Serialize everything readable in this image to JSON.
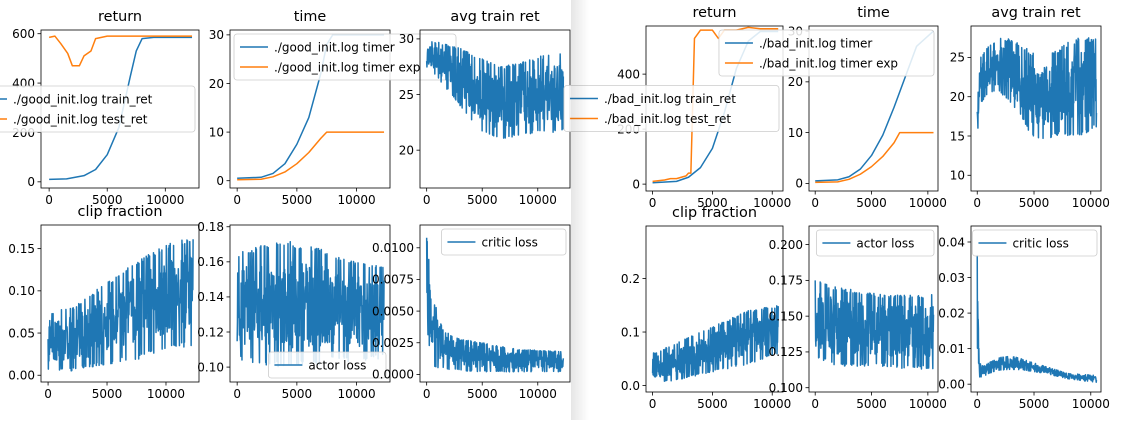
{
  "colors": {
    "blue": "#1f77b4",
    "orange": "#ff7f0e",
    "axis": "#000000"
  },
  "figures": [
    {
      "name": "good-init",
      "panels": [
        {
          "key": "return",
          "title": "return",
          "xlim": [
            -700,
            12900
          ],
          "ylim": [
            -25,
            615
          ],
          "xticks": [
            0,
            5000,
            10000
          ],
          "yticks": [
            0,
            200,
            400,
            600
          ],
          "legend": {
            "loc": "center-right",
            "entries": [
              "./good_init.log train_ret",
              "./good_init.log test_ret"
            ]
          }
        },
        {
          "key": "time",
          "title": "time",
          "xlim": [
            -600,
            12800
          ],
          "ylim": [
            -1.5,
            31
          ],
          "xticks": [
            0,
            5000,
            10000
          ],
          "yticks": [
            0,
            10,
            20,
            30
          ],
          "legend": {
            "loc": "upper-left",
            "entries": [
              "./good_init.log timer",
              "./good_init.log timer exp"
            ]
          }
        },
        {
          "key": "avg_train_ret",
          "title": "avg train ret",
          "xlim": [
            -600,
            12900
          ],
          "ylim": [
            16.6,
            30.8
          ],
          "xticks": [
            0,
            5000,
            10000
          ],
          "yticks": [
            20,
            25,
            30
          ],
          "legend": null
        },
        {
          "key": "clip_fraction",
          "title": "clip fraction",
          "xlim": [
            -600,
            12800
          ],
          "ylim": [
            -0.008,
            0.178
          ],
          "xticks": [
            0,
            5000,
            10000
          ],
          "yticks": [
            0.0,
            0.05,
            0.1,
            0.15
          ],
          "ydec": 2,
          "legend": null
        },
        {
          "key": "actor_loss",
          "title": "",
          "xlim": [
            -600,
            12800
          ],
          "ylim": [
            0.0915,
            0.181
          ],
          "xticks": [
            0,
            5000,
            10000
          ],
          "yticks": [
            0.1,
            0.12,
            0.14,
            0.16,
            0.18
          ],
          "ydec": 2,
          "legend": {
            "loc": "lower-right",
            "entries": [
              "actor loss"
            ]
          }
        },
        {
          "key": "critic_loss",
          "title": "",
          "xlim": [
            -600,
            12900
          ],
          "ylim": [
            -0.0006,
            0.0118
          ],
          "xticks": [
            0,
            5000,
            10000
          ],
          "yticks": [
            0.0,
            0.0025,
            0.005,
            0.0075,
            0.01
          ],
          "ydec": 4,
          "legend": {
            "loc": "upper-right",
            "entries": [
              "critic loss"
            ]
          }
        }
      ]
    },
    {
      "name": "bad-init",
      "panels": [
        {
          "key": "return",
          "title": "return",
          "xlim": [
            -550,
            10900
          ],
          "ylim": [
            -25,
            575
          ],
          "xticks": [
            0,
            5000,
            10000
          ],
          "yticks": [
            0,
            200,
            400
          ],
          "legend": {
            "loc": "center-right",
            "entries": [
              "./bad_init.log train_ret",
              "./bad_init.log test_ret"
            ]
          }
        },
        {
          "key": "time",
          "title": "time",
          "xlim": [
            -550,
            10900
          ],
          "ylim": [
            -1.5,
            31
          ],
          "xticks": [
            0,
            5000,
            10000
          ],
          "yticks": [
            0,
            10,
            20,
            30
          ],
          "legend": {
            "loc": "upper-right",
            "entries": [
              "./bad_init.log timer",
              "./bad_init.log timer exp"
            ]
          }
        },
        {
          "key": "avg_train_ret",
          "title": "avg train ret",
          "xlim": [
            -550,
            10900
          ],
          "ylim": [
            8.0,
            29.0
          ],
          "xticks": [
            0,
            5000,
            10000
          ],
          "yticks": [
            10,
            15,
            20,
            25
          ],
          "legend": null
        },
        {
          "key": "clip_fraction",
          "title": "clip fraction",
          "xlim": [
            -550,
            10900
          ],
          "ylim": [
            -0.012,
            0.298
          ],
          "xticks": [
            0,
            5000,
            10000
          ],
          "yticks": [
            0.0,
            0.1,
            0.2
          ],
          "ydec": 1,
          "legend": null
        },
        {
          "key": "actor_loss",
          "title": "",
          "xlim": [
            -550,
            10900
          ],
          "ylim": [
            0.097,
            0.213
          ],
          "xticks": [
            0,
            5000,
            10000
          ],
          "yticks": [
            0.1,
            0.125,
            0.15,
            0.175,
            0.2
          ],
          "ydec": 3,
          "legend": {
            "loc": "upper-right",
            "entries": [
              "actor loss"
            ]
          }
        },
        {
          "key": "critic_loss",
          "title": "",
          "xlim": [
            -550,
            10900
          ],
          "ylim": [
            -0.0022,
            0.0445
          ],
          "xticks": [
            0,
            5000,
            10000
          ],
          "yticks": [
            0.0,
            0.01,
            0.02,
            0.03,
            0.04
          ],
          "ydec": 2,
          "legend": {
            "loc": "upper-right",
            "entries": [
              "critic loss"
            ]
          }
        }
      ]
    }
  ],
  "chart_data": [
    {
      "type": "line",
      "figure": "good-init",
      "title": "return",
      "series": [
        {
          "name": "./good_init.log train_ret",
          "color": "#1f77b4",
          "x": [
            0,
            1500,
            3000,
            4000,
            5000,
            6000,
            7000,
            7500,
            8000,
            9000,
            10000,
            11000,
            12300
          ],
          "y": [
            10,
            12,
            25,
            50,
            110,
            220,
            430,
            530,
            580,
            585,
            585,
            585,
            585
          ]
        },
        {
          "name": "./good_init.log test_ret",
          "color": "#ff7f0e",
          "x": [
            0,
            500,
            1000,
            1600,
            2000,
            2600,
            3000,
            3600,
            4000,
            5000,
            6000,
            8000,
            10000,
            12300
          ],
          "y": [
            585,
            590,
            560,
            520,
            470,
            470,
            510,
            530,
            580,
            590,
            590,
            590,
            590,
            590
          ]
        }
      ]
    },
    {
      "type": "line",
      "figure": "good-init",
      "title": "time",
      "series": [
        {
          "name": "./good_init.log timer",
          "color": "#1f77b4",
          "x": [
            0,
            2000,
            3000,
            4000,
            5000,
            6000,
            7000,
            7500,
            8000,
            10000,
            12300
          ],
          "y": [
            0.5,
            0.7,
            1.5,
            3.5,
            7.5,
            13,
            22,
            28,
            30,
            30,
            30
          ]
        },
        {
          "name": "./good_init.log timer exp",
          "color": "#ff7f0e",
          "x": [
            0,
            2000,
            3000,
            4000,
            5000,
            6000,
            7000,
            7500,
            10000,
            12300
          ],
          "y": [
            0.2,
            0.3,
            0.8,
            1.8,
            3.5,
            5.8,
            8.7,
            10,
            10,
            10
          ]
        }
      ]
    },
    {
      "type": "line",
      "figure": "good-init",
      "title": "avg train ret",
      "series": [
        {
          "name": "",
          "color": "#1f77b4",
          "x": [
            0,
            1000,
            2000,
            3000,
            4000,
            5000,
            6000,
            7000,
            8000,
            9000,
            10000,
            11000,
            12300
          ],
          "y_high": [
            29.8,
            29.7,
            29.5,
            29.2,
            28.7,
            28.2,
            27.8,
            27.6,
            27.8,
            28.1,
            28.4,
            28.6,
            28.8
          ],
          "y_low": [
            27.5,
            26.5,
            25.2,
            24.0,
            22.6,
            21.6,
            21.0,
            21.0,
            21.2,
            21.4,
            21.5,
            21.6,
            21.6
          ]
        }
      ]
    },
    {
      "type": "line",
      "figure": "good-init",
      "title": "clip fraction",
      "series": [
        {
          "name": "",
          "color": "#1f77b4",
          "x": [
            0,
            2000,
            4000,
            6000,
            8000,
            10000,
            12300
          ],
          "y_high": [
            0.075,
            0.08,
            0.1,
            0.12,
            0.14,
            0.155,
            0.165
          ],
          "y_low": [
            0.005,
            0.005,
            0.01,
            0.015,
            0.02,
            0.03,
            0.035
          ]
        }
      ]
    },
    {
      "type": "line",
      "figure": "good-init",
      "title": "actor loss",
      "series": [
        {
          "name": "actor loss",
          "color": "#1f77b4",
          "x": [
            0,
            2000,
            4000,
            6000,
            8000,
            10000,
            12300
          ],
          "y_high": [
            0.165,
            0.17,
            0.172,
            0.17,
            0.165,
            0.16,
            0.158
          ],
          "y_low": [
            0.105,
            0.1,
            0.1,
            0.1,
            0.103,
            0.103,
            0.105
          ]
        }
      ]
    },
    {
      "type": "line",
      "figure": "good-init",
      "title": "critic loss",
      "series": [
        {
          "name": "critic loss",
          "color": "#1f77b4",
          "x": [
            0,
            200,
            600,
            1500,
            3000,
            5000,
            8000,
            12300
          ],
          "y_high": [
            0.011,
            0.009,
            0.006,
            0.0035,
            0.0028,
            0.0025,
            0.002,
            0.0018
          ],
          "y_low": [
            0.0025,
            0.001,
            0.0006,
            0.0004,
            0.0003,
            0.0002,
            0.0002,
            0.0002
          ]
        }
      ]
    },
    {
      "type": "line",
      "figure": "bad-init",
      "title": "return",
      "series": [
        {
          "name": "./bad_init.log train_ret",
          "color": "#1f77b4",
          "x": [
            0,
            2000,
            3000,
            4000,
            5000,
            6000,
            7000,
            8000,
            9000,
            10500
          ],
          "y": [
            5,
            10,
            25,
            60,
            130,
            260,
            420,
            520,
            555,
            555
          ]
        },
        {
          "name": "./bad_init.log test_ret",
          "color": "#ff7f0e",
          "x": [
            0,
            1000,
            1500,
            2000,
            2800,
            3000,
            3200,
            3500,
            4000,
            5000,
            5500,
            6000,
            7000,
            8000,
            9000,
            10500
          ],
          "y": [
            10,
            15,
            20,
            20,
            30,
            40,
            40,
            530,
            560,
            560,
            530,
            560,
            560,
            570,
            565,
            565
          ]
        }
      ]
    },
    {
      "type": "line",
      "figure": "bad-init",
      "title": "time",
      "series": [
        {
          "name": "./bad_init.log timer",
          "color": "#1f77b4",
          "x": [
            0,
            2000,
            3000,
            4000,
            5000,
            6000,
            7000,
            8000,
            9000,
            10500
          ],
          "y": [
            0.5,
            0.7,
            1.3,
            2.8,
            5.5,
            9.5,
            15,
            21,
            27,
            30
          ]
        },
        {
          "name": "./bad_init.log timer exp",
          "color": "#ff7f0e",
          "x": [
            0,
            2000,
            3000,
            4000,
            5000,
            6000,
            7000,
            7500,
            8000,
            10500
          ],
          "y": [
            0.2,
            0.3,
            0.8,
            1.8,
            3.3,
            5.3,
            8.0,
            10,
            10,
            10
          ]
        }
      ]
    },
    {
      "type": "line",
      "figure": "bad-init",
      "title": "avg train ret",
      "series": [
        {
          "name": "",
          "color": "#1f77b4",
          "x": [
            0,
            300,
            1000,
            2000,
            3000,
            4000,
            5000,
            6000,
            7000,
            8000,
            9000,
            10500
          ],
          "y_high": [
            19,
            25,
            26.5,
            27.5,
            27.3,
            26.5,
            25.5,
            25.5,
            26,
            27,
            27.5,
            27.5
          ],
          "y_low": [
            15,
            19,
            20.5,
            20.5,
            19,
            17,
            14.5,
            14.5,
            15,
            15,
            15,
            16
          ]
        }
      ]
    },
    {
      "type": "line",
      "figure": "bad-init",
      "title": "clip fraction",
      "series": [
        {
          "name": "",
          "color": "#1f77b4",
          "x": [
            0,
            2000,
            4000,
            6000,
            8000,
            10500
          ],
          "y_high": [
            0.06,
            0.08,
            0.1,
            0.12,
            0.14,
            0.15
          ],
          "y_low": [
            0.005,
            0.01,
            0.02,
            0.03,
            0.04,
            0.06
          ]
        }
      ]
    },
    {
      "type": "line",
      "figure": "bad-init",
      "title": "actor loss",
      "series": [
        {
          "name": "actor loss",
          "color": "#1f77b4",
          "x": [
            0,
            2000,
            4000,
            6000,
            8000,
            10500
          ],
          "y_high": [
            0.175,
            0.17,
            0.168,
            0.165,
            0.165,
            0.165
          ],
          "y_low": [
            0.12,
            0.115,
            0.115,
            0.115,
            0.113,
            0.113
          ]
        }
      ]
    },
    {
      "type": "line",
      "figure": "bad-init",
      "title": "critic loss",
      "series": [
        {
          "name": "critic loss",
          "color": "#1f77b4",
          "x": [
            0,
            200,
            500,
            1000,
            2000,
            3000,
            4000,
            6000,
            8000,
            10500
          ],
          "y_high": [
            0.043,
            0.006,
            0.005,
            0.006,
            0.0075,
            0.008,
            0.007,
            0.005,
            0.003,
            0.0025
          ],
          "y_low": [
            0.003,
            0.002,
            0.002,
            0.003,
            0.004,
            0.004,
            0.004,
            0.003,
            0.0015,
            0.0005
          ]
        }
      ]
    }
  ]
}
